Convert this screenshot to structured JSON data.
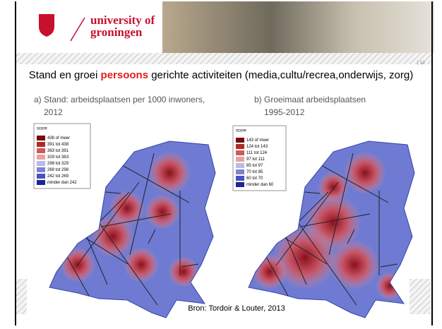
{
  "header": {
    "logo_line1": "university of",
    "logo_line2": "groningen",
    "page_number": "| 12"
  },
  "title": {
    "part1": "Stand en groei ",
    "highlight": "persoons",
    "part2": " gerichte activiteiten (media,cultu/recrea,onderwijs, zorg)"
  },
  "map_a": {
    "caption_line1": "a) Stand: arbeidsplaatsen per 1000 inwoners,",
    "caption_line2": "2012",
    "legend_title": "score",
    "legend": [
      "438 of meer",
      "391 tot 438",
      "363 tot 391",
      "329 tot 363",
      "298 tot 329",
      "269 tot 298",
      "242 tot 269",
      "minder dan 242"
    ]
  },
  "map_b": {
    "caption_line1": "b) Groeimaat arbeidsplaatsen",
    "caption_line2": "1995-2012",
    "legend_title": "score",
    "legend": [
      "143 of meer",
      "124 tot 143",
      "111 tot 124",
      "97 tot 111",
      "85 tot 97",
      "70 tot 85",
      "60 tot 70",
      "minder dan 60"
    ]
  },
  "source": "Bron: Tordoir & Louter, 2013"
}
